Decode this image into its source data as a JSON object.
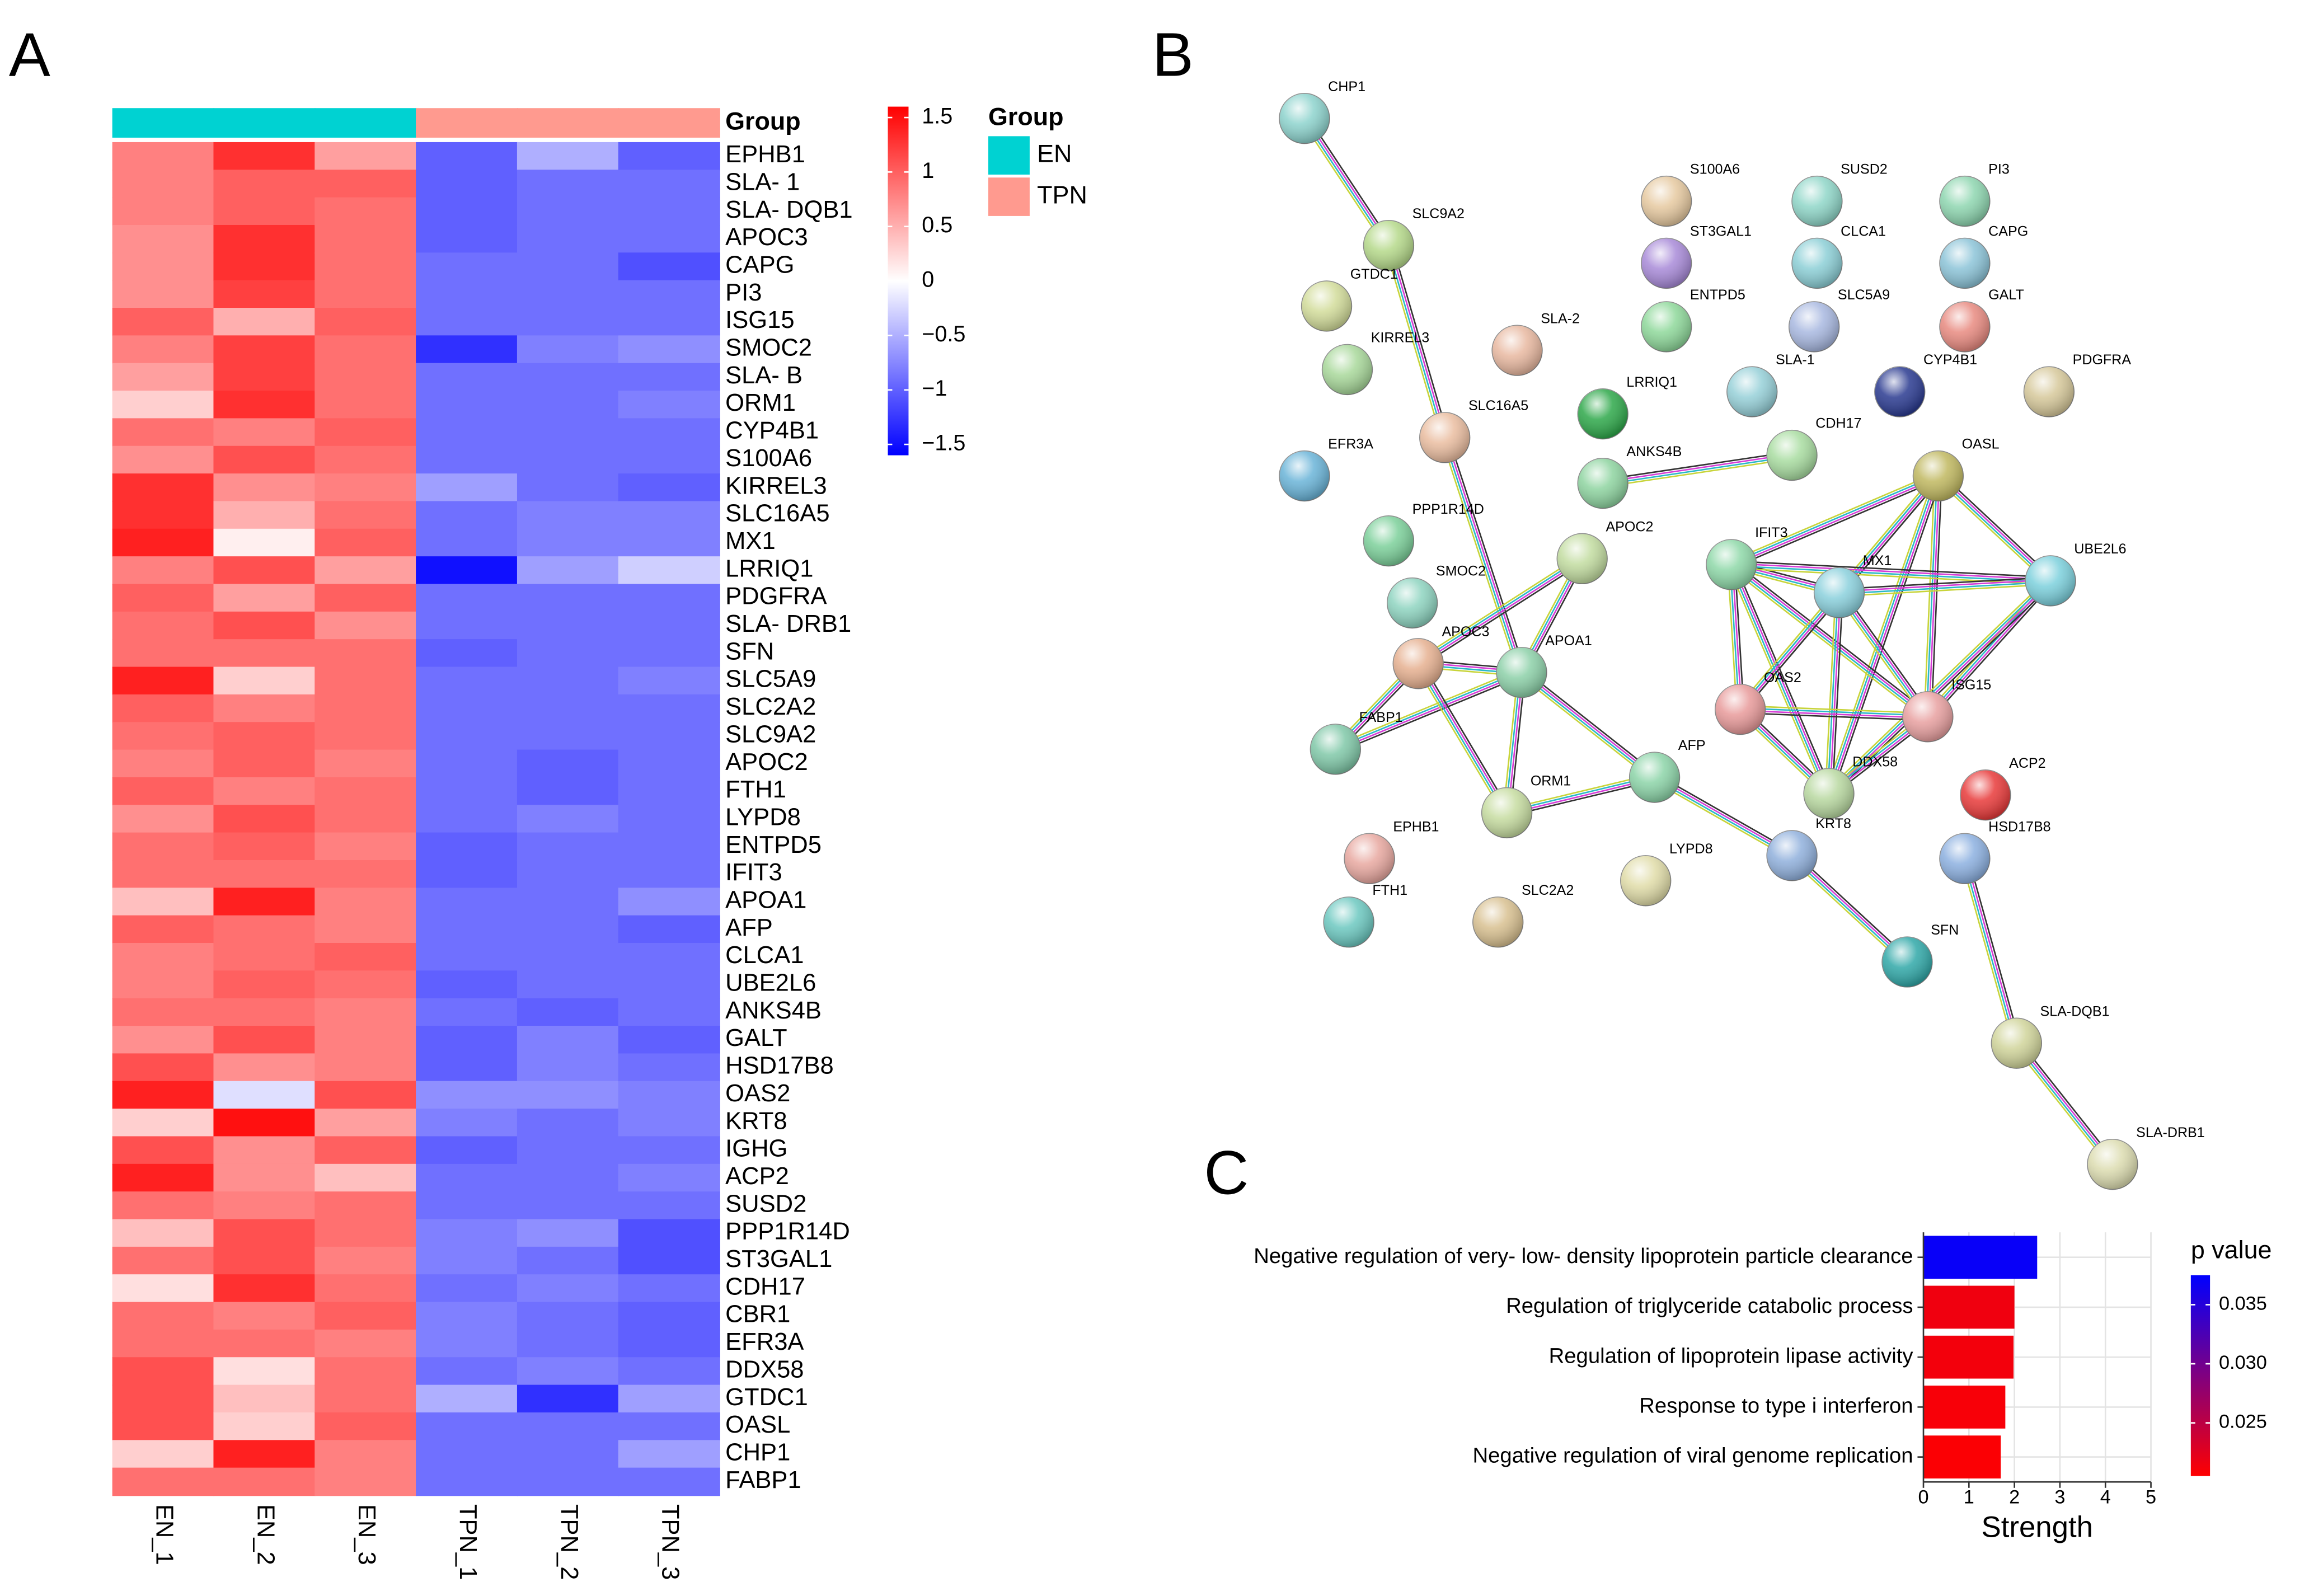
{
  "chart_data": [
    {
      "type": "heatmap",
      "panel": "A",
      "group_title": "Group",
      "groups": [
        {
          "name": "EN",
          "color": "#00d2d2"
        },
        {
          "name": "TPN",
          "color": "#ff9a8f"
        }
      ],
      "categories": [
        "EPHB1",
        "SLA- 1",
        "SLA- DQB1",
        "APOC3",
        "CAPG",
        "PI3",
        "ISG15",
        "SMOC2",
        "SLA- B",
        "ORM1",
        "CYP4B1",
        "S100A6",
        "KIRREL3",
        "SLC16A5",
        "MX1",
        "LRRIQ1",
        "PDGFRA",
        "SLA- DRB1",
        "SFN",
        "SLC5A9",
        "SLC2A2",
        "SLC9A2",
        "APOC2",
        "FTH1",
        "LYPD8",
        "ENTPD5",
        "IFIT3",
        "APOA1",
        "AFP",
        "CLCA1",
        "UBE2L6",
        "ANKS4B",
        "GALT",
        "HSD17B8",
        "OAS2",
        "KRT8",
        "IGHG",
        "ACP2",
        "SUSD2",
        "PPP1R14D",
        "ST3GAL1",
        "CDH17",
        "CBR1",
        "EFR3A",
        "DDX58",
        "GTDC1",
        "OASL",
        "CHP1",
        "FABP1"
      ],
      "series": [
        {
          "name": "EN_1",
          "group": 0,
          "values": [
            0.8,
            0.8,
            0.8,
            0.7,
            0.7,
            0.7,
            1.0,
            0.8,
            0.6,
            0.3,
            0.9,
            0.7,
            1.3,
            1.3,
            1.4,
            0.8,
            1.0,
            0.9,
            0.9,
            1.4,
            1.0,
            0.9,
            0.8,
            1.0,
            0.7,
            0.9,
            0.9,
            0.4,
            1.0,
            0.8,
            0.8,
            0.9,
            0.7,
            1.1,
            1.4,
            0.3,
            1.1,
            1.4,
            0.9,
            0.4,
            0.9,
            0.2,
            0.9,
            0.9,
            1.1,
            1.1,
            1.1,
            0.3,
            0.9
          ]
        },
        {
          "name": "EN_2",
          "group": 0,
          "values": [
            1.3,
            1.0,
            1.0,
            1.3,
            1.3,
            1.2,
            0.5,
            1.2,
            1.2,
            1.3,
            0.8,
            1.1,
            0.7,
            0.5,
            0.1,
            1.1,
            0.6,
            1.1,
            0.9,
            0.3,
            0.8,
            1.0,
            1.0,
            0.8,
            1.1,
            1.0,
            0.9,
            1.4,
            0.9,
            0.9,
            1.0,
            0.9,
            1.1,
            0.7,
            -0.2,
            1.5,
            0.7,
            0.7,
            0.8,
            1.1,
            1.1,
            1.3,
            0.8,
            0.9,
            0.2,
            0.4,
            0.3,
            1.4,
            0.9
          ]
        },
        {
          "name": "EN_3",
          "group": 0,
          "values": [
            0.6,
            1.0,
            0.9,
            0.9,
            0.9,
            0.9,
            1.0,
            0.9,
            0.9,
            0.9,
            1.0,
            0.9,
            0.8,
            0.9,
            1.0,
            0.6,
            1.0,
            0.7,
            0.9,
            0.9,
            0.9,
            0.9,
            0.8,
            0.9,
            0.9,
            0.8,
            0.9,
            0.8,
            0.8,
            1.0,
            0.9,
            0.8,
            0.8,
            0.8,
            1.1,
            0.6,
            1.0,
            0.4,
            0.9,
            0.9,
            0.8,
            0.9,
            1.0,
            0.8,
            0.9,
            0.9,
            1.0,
            0.8,
            0.8
          ]
        },
        {
          "name": "TPN_1",
          "group": 1,
          "values": [
            -1.0,
            -1.0,
            -1.0,
            -1.0,
            -0.9,
            -0.9,
            -0.9,
            -1.3,
            -0.9,
            -0.9,
            -0.9,
            -0.9,
            -0.6,
            -0.9,
            -0.9,
            -1.5,
            -0.9,
            -0.9,
            -1.0,
            -0.9,
            -0.9,
            -0.9,
            -0.9,
            -0.9,
            -0.9,
            -1.0,
            -1.0,
            -0.9,
            -0.9,
            -0.9,
            -1.0,
            -0.9,
            -1.0,
            -1.0,
            -0.7,
            -0.8,
            -1.0,
            -0.9,
            -0.9,
            -0.8,
            -0.8,
            -0.9,
            -0.8,
            -0.8,
            -0.9,
            -0.5,
            -0.9,
            -0.9,
            -0.9
          ]
        },
        {
          "name": "TPN_2",
          "group": 1,
          "values": [
            -0.5,
            -0.9,
            -0.9,
            -0.9,
            -0.9,
            -0.9,
            -0.9,
            -0.8,
            -0.9,
            -0.9,
            -0.9,
            -0.9,
            -0.9,
            -0.8,
            -0.8,
            -0.6,
            -0.9,
            -0.9,
            -0.9,
            -0.9,
            -0.9,
            -0.9,
            -1.0,
            -1.0,
            -0.8,
            -0.9,
            -0.9,
            -0.9,
            -0.9,
            -0.9,
            -0.9,
            -1.0,
            -0.8,
            -0.8,
            -0.7,
            -0.9,
            -0.9,
            -0.9,
            -0.9,
            -0.7,
            -0.9,
            -0.8,
            -0.9,
            -0.9,
            -0.8,
            -1.3,
            -0.9,
            -0.9,
            -0.9
          ]
        },
        {
          "name": "TPN_3",
          "group": 1,
          "values": [
            -1.0,
            -0.9,
            -0.9,
            -0.9,
            -1.1,
            -0.9,
            -0.9,
            -0.7,
            -0.9,
            -0.8,
            -0.9,
            -0.9,
            -1.0,
            -0.8,
            -0.8,
            -0.3,
            -0.9,
            -0.9,
            -0.9,
            -0.8,
            -0.9,
            -0.9,
            -0.9,
            -0.9,
            -0.9,
            -0.9,
            -0.9,
            -0.7,
            -1.0,
            -0.9,
            -0.9,
            -0.9,
            -1.0,
            -0.9,
            -0.8,
            -0.8,
            -0.9,
            -0.8,
            -0.9,
            -1.1,
            -1.1,
            -0.9,
            -1.0,
            -1.0,
            -0.9,
            -0.6,
            -0.9,
            -0.6,
            -0.9
          ]
        }
      ],
      "clim": [
        -1.6,
        1.6
      ],
      "colors": [
        "#0000ff",
        "#ffffff",
        "#ff0000"
      ],
      "cticks": [
        1.5,
        1,
        0.5,
        0,
        {
          "value": -0.5,
          "label": "−0.5"
        },
        {
          "value": -1,
          "label": "−1"
        },
        {
          "value": -1.5,
          "label": "−1.5"
        }
      ]
    },
    {
      "type": "network",
      "panel": "B",
      "nodes": [
        {
          "label": "CHP1",
          "color": "#8dd3cd"
        },
        {
          "label": "SLC9A2",
          "color": "#b5d98a"
        },
        {
          "label": "GTDC1",
          "color": "#d2dc9a"
        },
        {
          "label": "KIRREL3",
          "color": "#a8d89a"
        },
        {
          "label": "SLA-2",
          "color": "#e8b8a0"
        },
        {
          "label": "S100A6",
          "color": "#e6c9a0"
        },
        {
          "label": "ST3GAL1",
          "color": "#a88ad8"
        },
        {
          "label": "ENTPD5",
          "color": "#8ed89a"
        },
        {
          "label": "SUSD2",
          "color": "#8fd6c8"
        },
        {
          "label": "CLCA1",
          "color": "#8ccfd6"
        },
        {
          "label": "SLC5A9",
          "color": "#a8b8e0"
        },
        {
          "label": "PI3",
          "color": "#8ed6b0"
        },
        {
          "label": "CAPG",
          "color": "#8cc4d8"
        },
        {
          "label": "GALT",
          "color": "#e88a80"
        },
        {
          "label": "SLC16A5",
          "color": "#eabda0"
        },
        {
          "label": "LRRIQ1",
          "color": "#2ea84a"
        },
        {
          "label": "SLA-1",
          "color": "#96d0d8"
        },
        {
          "label": "CYP4B1",
          "color": "#2a3a90"
        },
        {
          "label": "PDGFRA",
          "color": "#d6c89a"
        },
        {
          "label": "EFR3A",
          "color": "#6ab4d8"
        },
        {
          "label": "ANKS4B",
          "color": "#8ed4a0"
        },
        {
          "label": "CDH17",
          "color": "#a8dca0"
        },
        {
          "label": "OASL",
          "color": "#c0b860"
        },
        {
          "label": "PPP1R14D",
          "color": "#7cd09a"
        },
        {
          "label": "APOC2",
          "color": "#c2dca0"
        },
        {
          "label": "IFIT3",
          "color": "#8ed8a8"
        },
        {
          "label": "MX1",
          "color": "#8ad0dc"
        },
        {
          "label": "UBE2L6",
          "color": "#7cd0dc"
        },
        {
          "label": "SMOC2",
          "color": "#8ed4c0"
        },
        {
          "label": "APOC3",
          "color": "#e6b090"
        },
        {
          "label": "APOA1",
          "color": "#8cd0a8"
        },
        {
          "label": "OAS2",
          "color": "#e89a9a"
        },
        {
          "label": "ISG15",
          "color": "#e8a0a0"
        },
        {
          "label": "FABP1",
          "color": "#80c8a8"
        },
        {
          "label": "AFP",
          "color": "#8cd4a8"
        },
        {
          "label": "DDX58",
          "color": "#b8d8a0"
        },
        {
          "label": "ACP2",
          "color": "#e83a3a"
        },
        {
          "label": "ORM1",
          "color": "#c6dca0"
        },
        {
          "label": "KRT8",
          "color": "#90b0dc"
        },
        {
          "label": "EPHB1",
          "color": "#e8a8a0"
        },
        {
          "label": "HSD17B8",
          "color": "#8cb0e0"
        },
        {
          "label": "LYPD8",
          "color": "#e0dca8"
        },
        {
          "label": "FTH1",
          "color": "#6cc8c0"
        },
        {
          "label": "SLC2A2",
          "color": "#d8c090"
        },
        {
          "label": "SFN",
          "color": "#30a8a8"
        },
        {
          "label": "SLA-DQB1",
          "color": "#d0d49a"
        },
        {
          "label": "SLA-DRB1",
          "color": "#dcdcb0"
        }
      ],
      "edges": [
        [
          0,
          1
        ],
        [
          1,
          14
        ],
        [
          14,
          30
        ],
        [
          20,
          21
        ],
        [
          24,
          30
        ],
        [
          24,
          29
        ],
        [
          29,
          30
        ],
        [
          29,
          33
        ],
        [
          30,
          33
        ],
        [
          30,
          37
        ],
        [
          30,
          34
        ],
        [
          29,
          37
        ],
        [
          34,
          37
        ],
        [
          34,
          38
        ],
        [
          38,
          44
        ],
        [
          40,
          45
        ],
        [
          45,
          46
        ],
        [
          22,
          25
        ],
        [
          22,
          26
        ],
        [
          22,
          27
        ],
        [
          22,
          32
        ],
        [
          22,
          31
        ],
        [
          22,
          35
        ],
        [
          25,
          26
        ],
        [
          25,
          27
        ],
        [
          25,
          32
        ],
        [
          25,
          31
        ],
        [
          25,
          35
        ],
        [
          26,
          27
        ],
        [
          26,
          32
        ],
        [
          26,
          31
        ],
        [
          26,
          35
        ],
        [
          27,
          32
        ],
        [
          27,
          35
        ],
        [
          32,
          31
        ],
        [
          32,
          35
        ],
        [
          31,
          35
        ]
      ]
    },
    {
      "type": "bar",
      "panel": "C",
      "orientation": "horizontal",
      "categories": [
        "Negative regulation of very- low- density lipoprotein particle clearance",
        "Regulation of triglyceride catabolic process",
        "Regulation of lipoprotein lipase activity",
        "Response to type i interferon",
        "Negative regulation of viral genome replication"
      ],
      "values": [
        2.5,
        2.0,
        1.98,
        1.8,
        1.7
      ],
      "p_values": [
        0.037,
        0.0215,
        0.0213,
        0.021,
        0.0208
      ],
      "xlabel": "Strength",
      "xlim": [
        0,
        5
      ],
      "xticks": [
        0,
        1,
        2,
        3,
        4,
        5
      ],
      "grid": true,
      "color_title": "p value",
      "clim": [
        0.0205,
        0.0375
      ],
      "colors": [
        "#ff0000",
        "#0000ff"
      ],
      "cticks": [
        0.025,
        {
          "value": 0.03,
          "label": "0.030"
        },
        0.035
      ]
    }
  ]
}
